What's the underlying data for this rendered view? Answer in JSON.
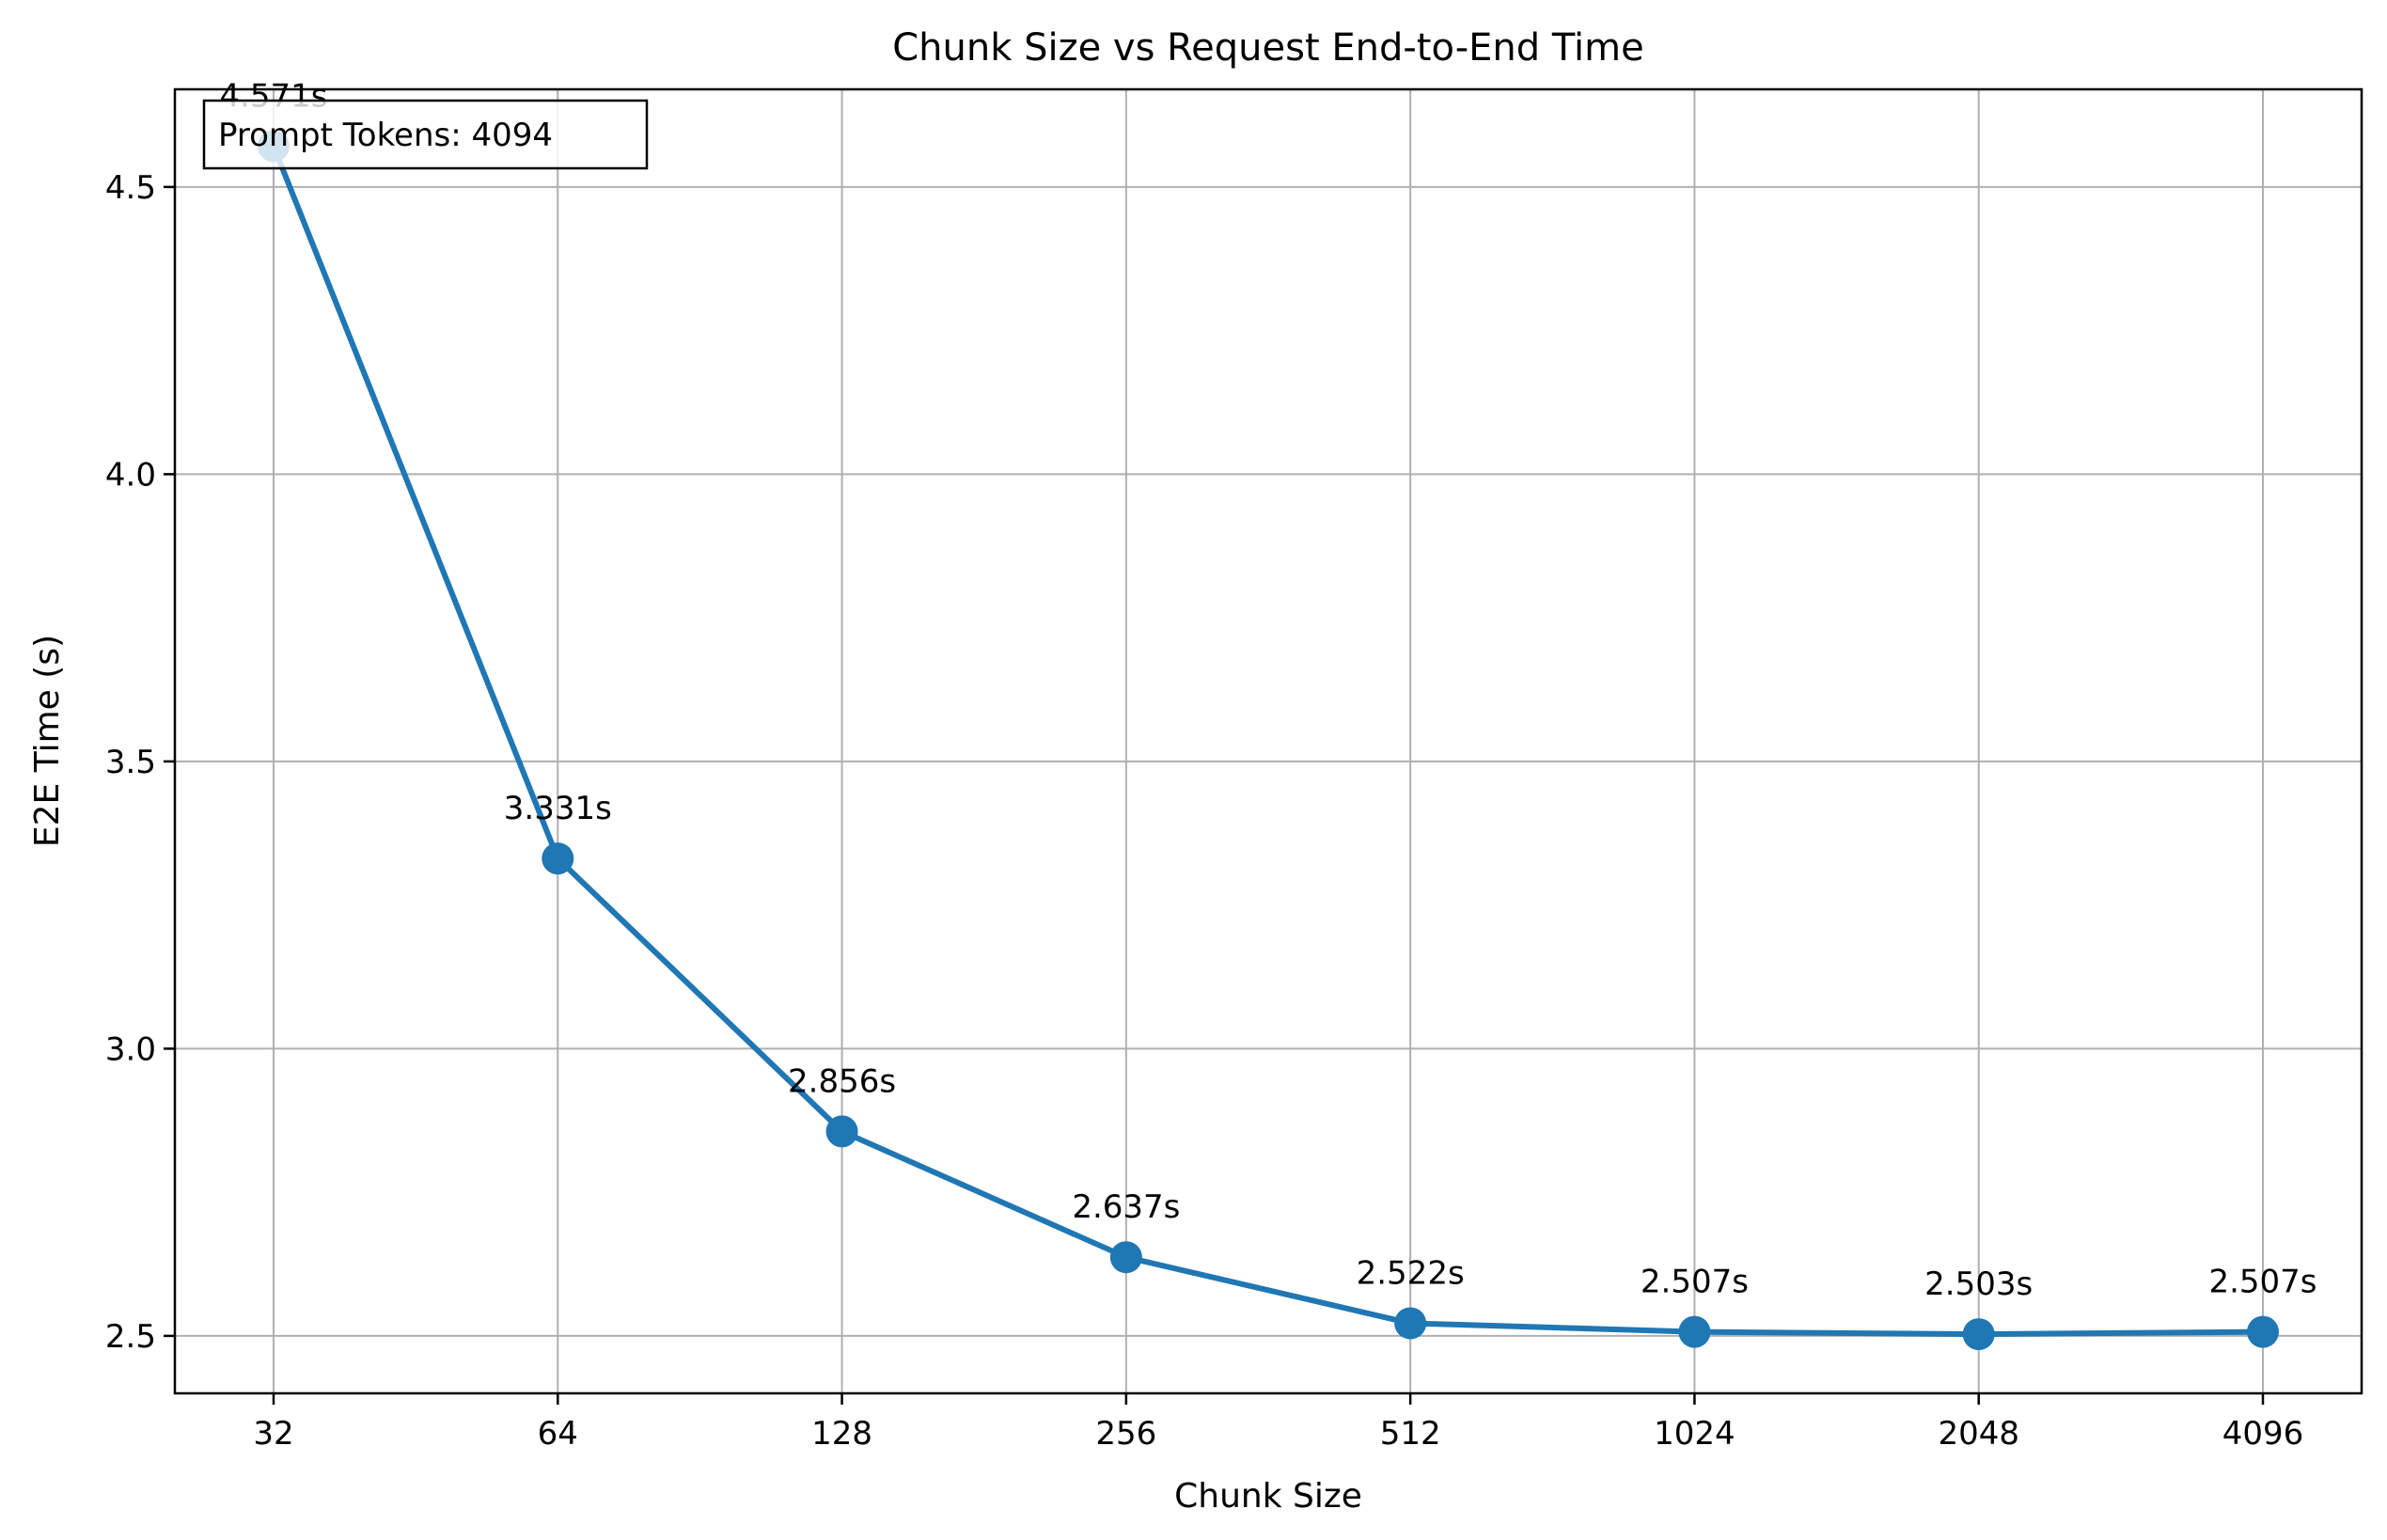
{
  "chart_data": {
    "type": "line",
    "title": "Chunk Size vs Request End-to-End Time",
    "xlabel": "Chunk Size",
    "ylabel": "E2E Time (s)",
    "x_scale": "log2",
    "categories": [
      "32",
      "64",
      "128",
      "256",
      "512",
      "1024",
      "2048",
      "4096"
    ],
    "series": [
      {
        "color": "#1f77b4",
        "values": [
          4.571,
          3.331,
          2.856,
          2.637,
          2.522,
          2.507,
          2.503,
          2.507
        ],
        "labels": [
          "4.571s",
          "3.331s",
          "2.856s",
          "2.637s",
          "2.522s",
          "2.507s",
          "2.503s",
          "2.507s"
        ]
      }
    ],
    "ylim": [
      2.4,
      4.67
    ],
    "yticks": [
      2.5,
      3.0,
      3.5,
      4.0,
      4.5
    ],
    "ytick_labels": [
      "2.5",
      "3.0",
      "3.5",
      "4.0",
      "4.5"
    ],
    "grid": true,
    "annotation": "Prompt Tokens: 4094",
    "annotation_placement": "top-left"
  }
}
